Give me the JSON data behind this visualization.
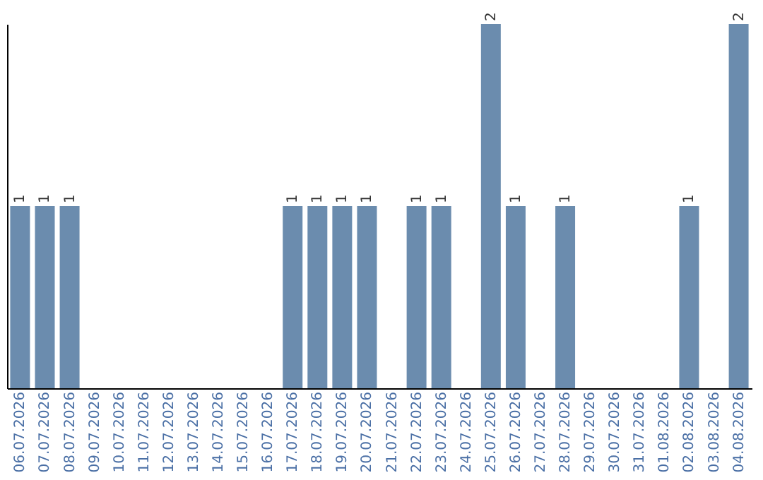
{
  "chart_data": {
    "type": "bar",
    "categories": [
      "06.07.2026",
      "07.07.2026",
      "08.07.2026",
      "09.07.2026",
      "10.07.2026",
      "11.07.2026",
      "12.07.2026",
      "13.07.2026",
      "14.07.2026",
      "15.07.2026",
      "16.07.2026",
      "17.07.2026",
      "18.07.2026",
      "19.07.2026",
      "20.07.2026",
      "21.07.2026",
      "22.07.2026",
      "23.07.2026",
      "24.07.2026",
      "25.07.2026",
      "26.07.2026",
      "27.07.2026",
      "28.07.2026",
      "29.07.2026",
      "30.07.2026",
      "31.07.2026",
      "01.08.2026",
      "02.08.2026",
      "03.08.2026",
      "04.08.2026"
    ],
    "values": [
      1,
      1,
      1,
      0,
      0,
      0,
      0,
      0,
      0,
      0,
      0,
      1,
      1,
      1,
      1,
      0,
      1,
      1,
      0,
      2,
      1,
      0,
      1,
      0,
      0,
      0,
      0,
      1,
      0,
      2
    ],
    "value_labels": [
      "1",
      "1",
      "1",
      null,
      null,
      null,
      null,
      null,
      null,
      null,
      null,
      "1",
      "1",
      "1",
      "1",
      null,
      "1",
      "1",
      null,
      "2",
      "1",
      null,
      "1",
      null,
      null,
      null,
      null,
      "1",
      null,
      "2"
    ],
    "color": "#6b8cae",
    "grid": false,
    "tick_labels": "x"
  }
}
